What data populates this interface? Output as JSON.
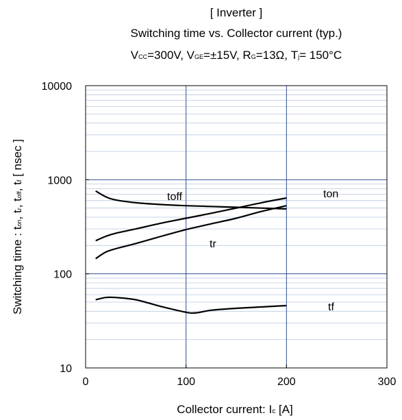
{
  "chart_data": {
    "type": "line",
    "title": "[ Inverter ]",
    "subtitle": "Switching time  vs.  Collector current  (typ.)",
    "conditions": {
      "vcc": {
        "sym": "V",
        "sub": "CC",
        "rest": "=300V, "
      },
      "vge": {
        "sym": "V",
        "sub": "GE",
        "rest": "=±15V, "
      },
      "rg": {
        "sym": "R",
        "sub": "G",
        "rest": "=13Ω, "
      },
      "tj": {
        "sym": "T",
        "sub": "j",
        "rest": "= 150°C"
      }
    },
    "xlabel": {
      "main": "Collector current: I",
      "sub": "c",
      "end": " [A]"
    },
    "ylabel": {
      "main": "Switching time  :  t",
      "sub1": "on",
      "sep1": ", t",
      "sub2": "r",
      "sep2": ", t",
      "sub3": "off",
      "sep3": ", t",
      "sub4": "f",
      "end": "  [ nsec ]"
    },
    "x_ticks": [
      "0",
      "100",
      "200",
      "300"
    ],
    "y_ticks": [
      "10",
      "100",
      "1000",
      "10000"
    ],
    "xlim": [
      0,
      300
    ],
    "ylim": [
      10,
      10000
    ],
    "y_scale": "log",
    "grid": true,
    "colors": {
      "grid_major": "#2f4f8f",
      "grid_minor": "#b8c8e0",
      "series": "#000000"
    },
    "series": [
      {
        "name": "toff",
        "x": [
          10,
          20,
          30,
          50,
          75,
          100,
          125,
          150,
          175,
          200
        ],
        "y": [
          760,
          660,
          610,
          570,
          545,
          530,
          520,
          510,
          500,
          490
        ]
      },
      {
        "name": "ton",
        "x": [
          10,
          20,
          30,
          50,
          75,
          100,
          125,
          150,
          175,
          200
        ],
        "y": [
          225,
          250,
          270,
          300,
          345,
          390,
          440,
          500,
          570,
          640
        ]
      },
      {
        "name": "tr",
        "x": [
          10,
          20,
          30,
          50,
          75,
          100,
          125,
          150,
          175,
          200
        ],
        "y": [
          145,
          170,
          185,
          210,
          250,
          295,
          340,
          390,
          460,
          530
        ]
      },
      {
        "name": "tf",
        "x": [
          10,
          20,
          30,
          50,
          75,
          100,
          110,
          125,
          150,
          175,
          200
        ],
        "y": [
          53,
          56,
          56,
          53,
          45,
          39,
          38.5,
          41,
          43,
          44.5,
          46
        ]
      }
    ]
  }
}
